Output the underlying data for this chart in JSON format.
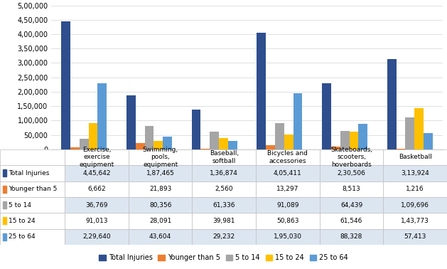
{
  "categories": [
    "Exercise,\nexercise\nequipment",
    "Swimming,\npools,\nequipment",
    "Baseball,\nsoftball",
    "Bicycles and\naccessories",
    "Skateboards,\nscooters,\nhoverboards",
    "Basketball"
  ],
  "series": [
    {
      "label": "Total Injuries",
      "color": "#2e4e8e",
      "values": [
        445642,
        187465,
        136874,
        405411,
        230506,
        313924
      ]
    },
    {
      "label": "Younger than 5",
      "color": "#ed7d31",
      "values": [
        6662,
        21893,
        2560,
        13297,
        8513,
        1216
      ]
    },
    {
      "label": "5 to 14",
      "color": "#a5a5a5",
      "values": [
        36769,
        80356,
        61336,
        91089,
        64439,
        109696
      ]
    },
    {
      "label": "15 to 24",
      "color": "#ffc000",
      "values": [
        91013,
        28091,
        39981,
        50863,
        61546,
        143773
      ]
    },
    {
      "label": "25 to 64",
      "color": "#5b9bd5",
      "values": [
        229640,
        43604,
        29232,
        195030,
        88328,
        57413
      ]
    }
  ],
  "ylim": [
    0,
    500000
  ],
  "yticks": [
    0,
    50000,
    100000,
    150000,
    200000,
    250000,
    300000,
    350000,
    400000,
    450000,
    500000
  ],
  "ytick_labels": [
    "0",
    "50,000",
    "1,00,000",
    "1,50,000",
    "2,00,000",
    "2,50,000",
    "3,00,000",
    "3,50,000",
    "4,00,000",
    "4,50,000",
    "5,00,000"
  ],
  "bar_width": 0.14,
  "table_rows": [
    [
      "Total Injuries",
      "4,45,642",
      "1,87,465",
      "1,36,874",
      "4,05,411",
      "2,30,506",
      "3,13,924"
    ],
    [
      "Younger than 5",
      "6,662",
      "21,893",
      "2,560",
      "13,297",
      "8,513",
      "1,216"
    ],
    [
      "5 to 14",
      "36,769",
      "80,356",
      "61,336",
      "91,089",
      "64,439",
      "1,09,696"
    ],
    [
      "15 to 24",
      "91,013",
      "28,091",
      "39,981",
      "50,863",
      "61,546",
      "1,43,773"
    ],
    [
      "25 to 64",
      "2,29,640",
      "43,604",
      "29,232",
      "1,95,030",
      "88,328",
      "57,413"
    ]
  ],
  "table_row_colors": [
    "#2e4e8e",
    "#ed7d31",
    "#a5a5a5",
    "#ffc000",
    "#5b9bd5"
  ],
  "row_bg_even": "#dce6f1",
  "row_bg_odd": "#ffffff",
  "grid_color": "#e0e0e0",
  "border_color": "#bfbfbf",
  "legend_ncol": 5,
  "cat_short": [
    "Exercise,\nexercise\nequipment",
    "Swimming,\npools,\nequipment",
    "Baseball,\nsoftball",
    "Bicycles and\naccessories",
    "Skateboards,\nscooters,\nhoverboards",
    "Basketball"
  ]
}
